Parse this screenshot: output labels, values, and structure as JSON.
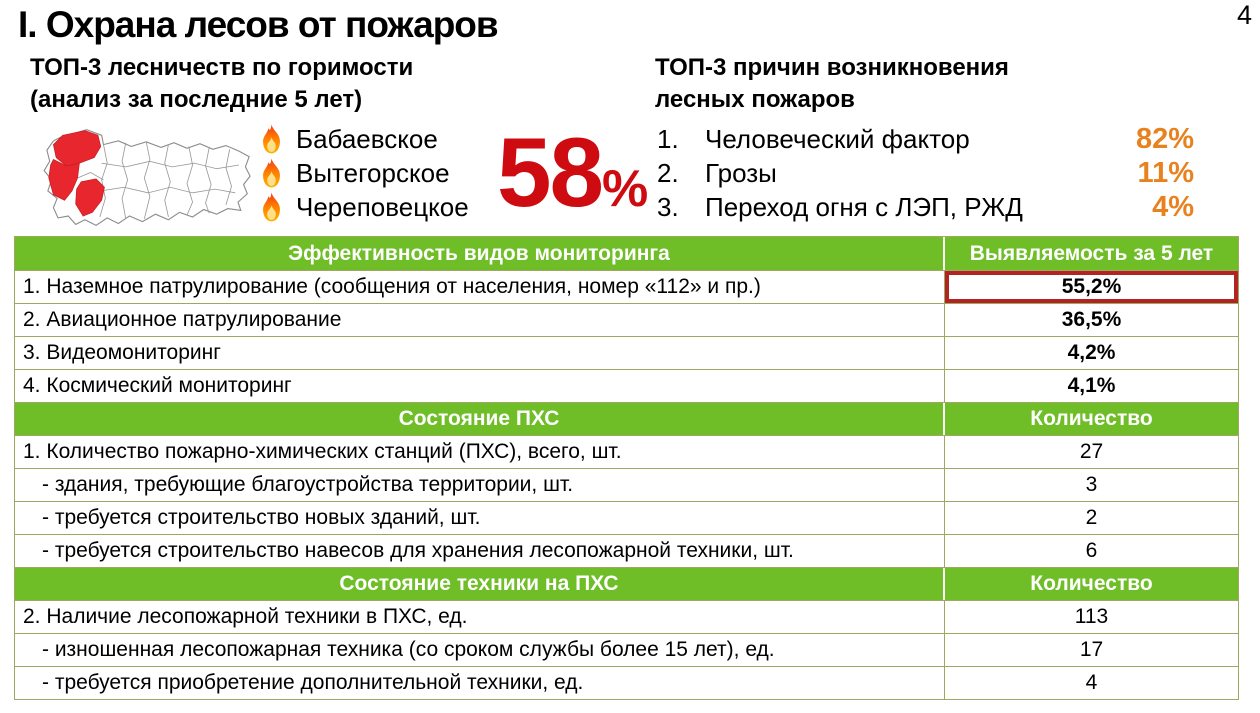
{
  "page": {
    "title": "I. Охрана лесов от пожаров",
    "page_number": "4"
  },
  "colors": {
    "header_green": "#6FBE28",
    "table_border": "#9FA763",
    "accent_red": "#CE0B10",
    "highlight_red": "#B22422",
    "orange": "#E8821E",
    "map_red": "#E8262D",
    "map_outline": "#8C8C8C"
  },
  "top_left": {
    "heading_line1": "ТОП-3 лесничеств по горимости",
    "heading_line2": "(анализ за последние 5 лет)",
    "map_icon": "vologda-districts-map",
    "forestries": [
      "Бабаевское",
      "Вытегорское",
      "Череповецкое"
    ],
    "burn_share_value": "58",
    "burn_share_unit": "%"
  },
  "top_right": {
    "heading_line1": "ТОП-3 причин возникновения",
    "heading_line2": "лесных пожаров",
    "causes": [
      {
        "num": "1.",
        "label": "Человеческий фактор",
        "value": "82%"
      },
      {
        "num": "2.",
        "label": "Грозы",
        "value": "11%"
      },
      {
        "num": "3.",
        "label": "Переход огня с ЛЭП, РЖД",
        "value": "4%"
      }
    ]
  },
  "table": {
    "sections": [
      {
        "header": "Эффективность видов мониторинга",
        "value_header": "Выявляемость за 5 лет",
        "rows": [
          {
            "label": "1. Наземное патрулирование (сообщения от населения, номер «112» и пр.)",
            "value": "55,2%",
            "value_bold": true,
            "highlighted": true,
            "indent": false
          },
          {
            "label": "2. Авиационное патрулирование",
            "value": "36,5%",
            "value_bold": true,
            "highlighted": false,
            "indent": false
          },
          {
            "label": "3. Видеомониторинг",
            "value": "4,2%",
            "value_bold": true,
            "highlighted": false,
            "indent": false
          },
          {
            "label": "4. Космический мониторинг",
            "value": "4,1%",
            "value_bold": true,
            "highlighted": false,
            "indent": false
          }
        ]
      },
      {
        "header": "Состояние ПХС",
        "value_header": "Количество",
        "rows": [
          {
            "label": "1. Количество пожарно-химических станций (ПХС), всего, шт.",
            "value": "27",
            "value_bold": false,
            "highlighted": false,
            "indent": false
          },
          {
            "label": "- здания, требующие благоустройства территории, шт.",
            "value": "3",
            "value_bold": false,
            "highlighted": false,
            "indent": true
          },
          {
            "label": "- требуется строительство новых зданий, шт.",
            "value": "2",
            "value_bold": false,
            "highlighted": false,
            "indent": true
          },
          {
            "label": "- требуется строительство навесов для хранения лесопожарной техники, шт.",
            "value": "6",
            "value_bold": false,
            "highlighted": false,
            "indent": true
          }
        ]
      },
      {
        "header": "Состояние техники на ПХС",
        "value_header": "Количество",
        "rows": [
          {
            "label": "2. Наличие лесопожарной техники в ПХС, ед.",
            "value": "113",
            "value_bold": false,
            "highlighted": false,
            "indent": false
          },
          {
            "label": "- изношенная лесопожарная техника (со сроком службы более 15 лет), ед.",
            "value": "17",
            "value_bold": false,
            "highlighted": false,
            "indent": true
          },
          {
            "label": "- требуется приобретение дополнительной техники, ед.",
            "value": "4",
            "value_bold": false,
            "highlighted": false,
            "indent": true
          }
        ]
      }
    ]
  }
}
